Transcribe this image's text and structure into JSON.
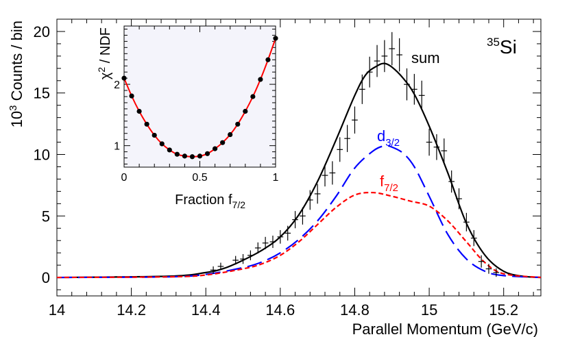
{
  "chart_data": [
    {
      "type": "line",
      "role": "main",
      "xlabel": "Parallel Momentum (GeV/c)",
      "ylabel_parts": {
        "base": "10",
        "exp": "3",
        "rest": " Counts / bin"
      },
      "xlim": [
        14.0,
        15.3
      ],
      "ylim": [
        -1.5,
        21.0
      ],
      "x_ticks": [
        14.0,
        14.2,
        14.4,
        14.6,
        14.8,
        15.0,
        15.2
      ],
      "x_tick_labels": [
        "14",
        "14.2",
        "14.4",
        "14.6",
        "14.8",
        "15",
        "15.2"
      ],
      "y_ticks": [
        0,
        5,
        10,
        15,
        20
      ],
      "y_tick_labels": [
        "0",
        "5",
        "10",
        "15",
        "20"
      ],
      "isotope": {
        "mass": "35",
        "symbol": "Si"
      },
      "series": [
        {
          "name": "sum",
          "label": "sum",
          "style": "solid",
          "color": "#000000",
          "x": [
            14.0,
            14.3,
            14.4,
            14.45,
            14.5,
            14.55,
            14.6,
            14.65,
            14.7,
            14.75,
            14.8,
            14.83,
            14.86,
            14.88,
            14.9,
            14.93,
            14.96,
            15.0,
            15.05,
            15.1,
            15.15,
            15.2,
            15.25,
            15.3
          ],
          "y": [
            0.0,
            0.1,
            0.4,
            0.75,
            1.4,
            2.2,
            3.3,
            5.1,
            7.8,
            11.2,
            14.8,
            16.5,
            17.2,
            17.4,
            17.1,
            16.2,
            14.9,
            12.3,
            8.5,
            4.4,
            1.8,
            0.5,
            0.1,
            0.0
          ]
        },
        {
          "name": "d3/2",
          "label_base": "d",
          "label_sub": "3/2",
          "style": "dashed",
          "color": "#0000ff",
          "x": [
            14.0,
            14.3,
            14.4,
            14.5,
            14.55,
            14.6,
            14.65,
            14.7,
            14.75,
            14.8,
            14.85,
            14.88,
            14.9,
            14.93,
            14.96,
            15.0,
            15.05,
            15.1,
            15.15,
            15.2,
            15.3
          ],
          "y": [
            0.0,
            0.05,
            0.25,
            0.8,
            1.25,
            2.0,
            3.1,
            4.6,
            6.6,
            8.9,
            10.3,
            10.7,
            10.6,
            10.1,
            9.0,
            6.6,
            3.5,
            1.5,
            0.5,
            0.15,
            0.0
          ]
        },
        {
          "name": "f7/2",
          "label_base": "f",
          "label_sub": "7/2",
          "style": "dotted",
          "color": "#ff0000",
          "x": [
            14.0,
            14.3,
            14.4,
            14.5,
            14.55,
            14.6,
            14.65,
            14.7,
            14.75,
            14.8,
            14.85,
            14.9,
            14.95,
            15.0,
            15.05,
            15.1,
            15.15,
            15.2,
            15.3
          ],
          "y": [
            0.0,
            0.05,
            0.2,
            0.7,
            1.1,
            1.8,
            2.9,
            4.3,
            5.7,
            6.7,
            6.9,
            6.6,
            6.2,
            5.8,
            4.6,
            2.9,
            1.2,
            0.3,
            0.0
          ]
        }
      ],
      "points": {
        "name": "data",
        "x_halfwidth": 0.008,
        "x": [
          14.42,
          14.44,
          14.48,
          14.5,
          14.52,
          14.54,
          14.56,
          14.58,
          14.6,
          14.62,
          14.64,
          14.66,
          14.68,
          14.7,
          14.72,
          14.74,
          14.76,
          14.78,
          14.8,
          14.82,
          14.84,
          14.86,
          14.88,
          14.9,
          14.92,
          14.94,
          14.96,
          14.98,
          15.0,
          15.02,
          15.04,
          15.06,
          15.08,
          15.1,
          15.12,
          15.14,
          15.16,
          15.18
        ],
        "y": [
          0.6,
          0.9,
          1.4,
          1.5,
          1.8,
          2.4,
          2.8,
          2.9,
          3.3,
          3.6,
          4.7,
          5.0,
          6.3,
          6.8,
          8.3,
          8.5,
          10.4,
          11.3,
          12.8,
          15.3,
          16.7,
          17.6,
          18.0,
          18.6,
          18.1,
          15.7,
          15.3,
          14.8,
          11.0,
          10.6,
          10.3,
          7.8,
          6.4,
          4.5,
          3.2,
          1.3,
          0.7,
          0.4
        ],
        "err": [
          0.3,
          0.3,
          0.35,
          0.4,
          0.4,
          0.45,
          0.5,
          0.5,
          0.55,
          0.6,
          0.7,
          0.7,
          0.8,
          0.8,
          0.9,
          0.95,
          1.0,
          1.1,
          1.1,
          1.2,
          1.25,
          1.3,
          1.3,
          1.35,
          1.35,
          1.3,
          1.25,
          1.2,
          1.1,
          1.05,
          1.0,
          0.9,
          0.85,
          0.75,
          0.65,
          0.5,
          0.4,
          0.35
        ]
      }
    },
    {
      "type": "scatter",
      "role": "inset",
      "xlabel_parts": {
        "base": "Fraction f",
        "sub": "7/2"
      },
      "ylabel_parts": {
        "chi": "χ",
        "exp": "2",
        "rest": " / NDF"
      },
      "xlim": [
        0.0,
        1.0
      ],
      "ylim": [
        0.65,
        2.95
      ],
      "x_ticks": [
        0,
        0.5,
        1
      ],
      "x_tick_labels": [
        "0",
        "0.5",
        "1"
      ],
      "y_ticks": [
        1,
        2
      ],
      "y_tick_labels": [
        "1",
        "2"
      ],
      "x": [
        0.0,
        0.05,
        0.1,
        0.15,
        0.2,
        0.25,
        0.3,
        0.35,
        0.4,
        0.45,
        0.5,
        0.55,
        0.6,
        0.65,
        0.7,
        0.75,
        0.8,
        0.85,
        0.9,
        0.95,
        1.0
      ],
      "y": [
        2.1,
        1.81,
        1.56,
        1.35,
        1.17,
        1.03,
        0.93,
        0.86,
        0.83,
        0.82,
        0.83,
        0.87,
        0.95,
        1.05,
        1.18,
        1.35,
        1.56,
        1.8,
        2.08,
        2.4,
        2.75
      ],
      "fit_color": "#ff0000",
      "marker_color": "#000000"
    }
  ]
}
